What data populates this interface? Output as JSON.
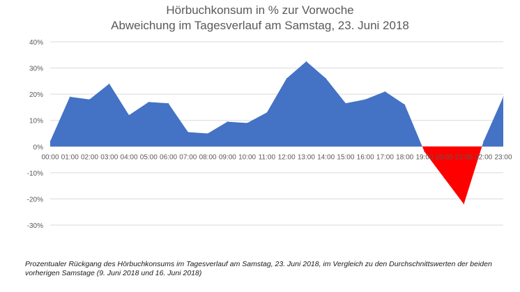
{
  "chart_data": {
    "type": "area",
    "title": "Hörbuchkonsum in % zur Vorwoche",
    "subtitle": "Abweichung im Tagesverlauf am Samstag, 23. Juni 2018",
    "xlabel": "",
    "ylabel": "",
    "categories": [
      "00:00",
      "01:00",
      "02:00",
      "03:00",
      "04:00",
      "05:00",
      "06:00",
      "07:00",
      "08:00",
      "09:00",
      "10:00",
      "11:00",
      "12:00",
      "13:00",
      "14:00",
      "15:00",
      "16:00",
      "17:00",
      "18:00",
      "19:00",
      "20:00",
      "21:00",
      "22:00",
      "23:00"
    ],
    "values": [
      2,
      19,
      18,
      24,
      12,
      17,
      16.5,
      5.5,
      5,
      9.5,
      9,
      13,
      26,
      32.5,
      26,
      16.5,
      18,
      21,
      16,
      -2,
      -12,
      -22,
      2,
      19
    ],
    "y_ticks": [
      "40%",
      "30%",
      "20%",
      "10%",
      "0%",
      "-10%",
      "-20%",
      "-30%"
    ],
    "ylim": [
      -30,
      40
    ],
    "grid": true,
    "legend": "none",
    "colors": {
      "positive": "#4472c4",
      "negative": "#ff0000",
      "grid": "#d9d9d9"
    }
  },
  "caption": {
    "line1": "Prozentualer Rückgang des Hörbuchkonsums im Tagesverlauf am Samstag, 23. Juni 2018, im Vergleich zu den Durchschnittswerten der beiden",
    "line2": "vorherigen Samstage (9. Juni 2018 und 16. Juni 2018)"
  }
}
